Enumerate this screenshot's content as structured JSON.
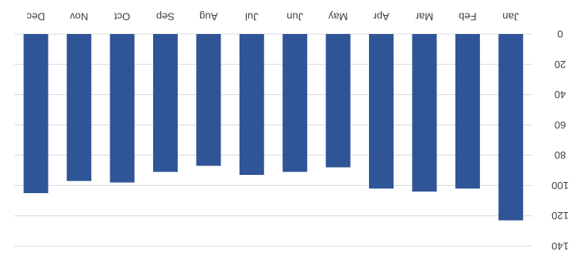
{
  "chart_data": {
    "type": "bar",
    "orientation": "rotated-180",
    "categories": [
      "Jan",
      "Feb",
      "Mar",
      "Apr",
      "May",
      "Jun",
      "Jul",
      "Aug",
      "Sep",
      "Oct",
      "Nov",
      "Dec"
    ],
    "values": [
      123,
      102,
      104,
      102,
      88,
      91,
      93,
      87,
      91,
      98,
      97,
      105
    ],
    "ylim": [
      0,
      140
    ],
    "yticks": [
      0,
      20,
      40,
      60,
      80,
      100,
      120,
      140
    ],
    "grid": true,
    "legend": "none",
    "title": "",
    "xlabel": "",
    "ylabel": "",
    "colors": {
      "bar": "#2F5597",
      "grid": "#D9D9D9",
      "text": "#404040"
    }
  }
}
